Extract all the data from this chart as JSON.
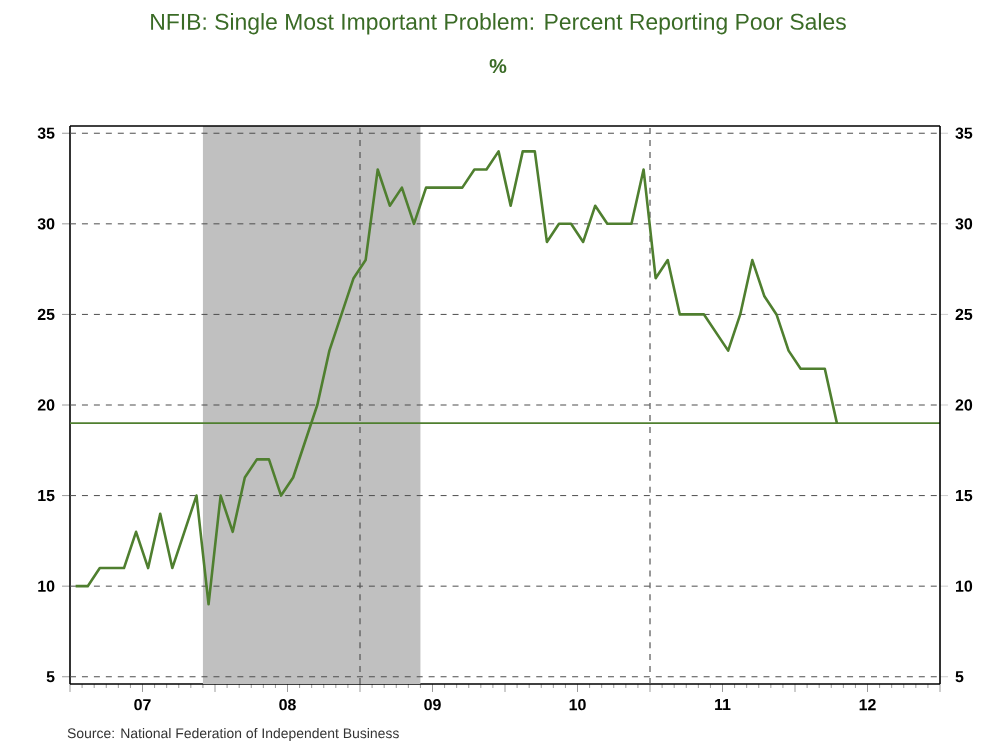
{
  "chart_data": {
    "type": "line",
    "title": "NFIB: Single Most Important Problem: Percent Reporting Poor Sales",
    "subtitle": "%",
    "annotations": [
      "Source:  National Federation of Independent Business"
    ],
    "x": [
      "2007-01-15",
      "2007-02-15",
      "2007-03-15",
      "2007-04-15",
      "2007-05-15",
      "2007-06-15",
      "2007-07-15",
      "2007-08-15",
      "2007-09-15",
      "2007-10-15",
      "2007-11-15",
      "2007-12-15",
      "2008-01-15",
      "2008-02-15",
      "2008-03-15",
      "2008-04-15",
      "2008-05-15",
      "2008-06-15",
      "2008-07-15",
      "2008-08-15",
      "2008-09-15",
      "2008-10-15",
      "2008-11-15",
      "2008-12-15",
      "2009-01-15",
      "2009-02-15",
      "2009-03-15",
      "2009-04-15",
      "2009-05-15",
      "2009-06-15",
      "2009-07-15",
      "2009-08-15",
      "2009-09-15",
      "2009-10-15",
      "2009-11-15",
      "2009-12-15",
      "2010-01-15",
      "2010-02-15",
      "2010-03-15",
      "2010-04-15",
      "2010-05-15",
      "2010-06-15",
      "2010-07-15",
      "2010-08-15",
      "2010-09-15",
      "2010-10-15",
      "2010-11-15",
      "2010-12-15",
      "2011-01-15",
      "2011-02-15",
      "2011-03-15",
      "2011-04-15",
      "2011-05-15",
      "2011-06-15",
      "2011-07-15",
      "2011-08-15",
      "2011-09-15",
      "2011-10-15",
      "2011-11-15",
      "2011-12-15",
      "2012-01-15",
      "2012-02-15",
      "2012-03-15",
      "2012-04-15"
    ],
    "series": [
      {
        "color": "#4f7f2f",
        "values": [
          10,
          10,
          11,
          11,
          11,
          13,
          11,
          14,
          11,
          13,
          15,
          9,
          15,
          13,
          16,
          17,
          17,
          15,
          16,
          18,
          20,
          23,
          25,
          27,
          28,
          33,
          31,
          32,
          30,
          32,
          32,
          32,
          32,
          33,
          33,
          34,
          31,
          34,
          34,
          29,
          30,
          30,
          29,
          31,
          30,
          30,
          30,
          33,
          27,
          28,
          25,
          25,
          25,
          24,
          23,
          25,
          28,
          26,
          25,
          23,
          22,
          22,
          22,
          19
        ]
      }
    ],
    "xlim": [
      "2007-01",
      "2013-01"
    ],
    "xticks": [
      {
        "value": "2007-01",
        "label": null
      },
      {
        "value": "2007-07",
        "label": "07"
      },
      {
        "value": "2008-01",
        "label": null
      },
      {
        "value": "2008-07",
        "label": "08"
      },
      {
        "value": "2009-01",
        "label": null
      },
      {
        "value": "2009-07",
        "label": "09"
      },
      {
        "value": "2010-01",
        "label": null
      },
      {
        "value": "2010-07",
        "label": "10"
      },
      {
        "value": "2011-01",
        "label": null
      },
      {
        "value": "2011-07",
        "label": "11"
      },
      {
        "value": "2012-01",
        "label": null
      },
      {
        "value": "2012-07",
        "label": "12"
      },
      {
        "value": "2013-01",
        "label": null
      }
    ],
    "ylim": [
      4.6,
      35.4
    ],
    "yticks": [
      5,
      10,
      15,
      20,
      25,
      30,
      35
    ],
    "y2lim": [
      4.6,
      35.4
    ],
    "y2ticks": [
      5,
      10,
      15,
      20,
      25,
      30,
      35
    ],
    "grid": "y",
    "marker": "none",
    "line_style": "solid",
    "ref_lines": [
      {
        "axis": "y",
        "value": 19,
        "color": "#4f7f2f",
        "line_style": "solid"
      },
      {
        "axis": "x",
        "value": "2009-01",
        "color": "#555555",
        "line_style": "dashed"
      },
      {
        "axis": "x",
        "value": "2011-01",
        "color": "#555555",
        "line_style": "dashed"
      }
    ],
    "bands": [
      {
        "axis": "x",
        "from": "2007-12",
        "to": "2009-06",
        "color": "#c0c0c0"
      }
    ]
  }
}
